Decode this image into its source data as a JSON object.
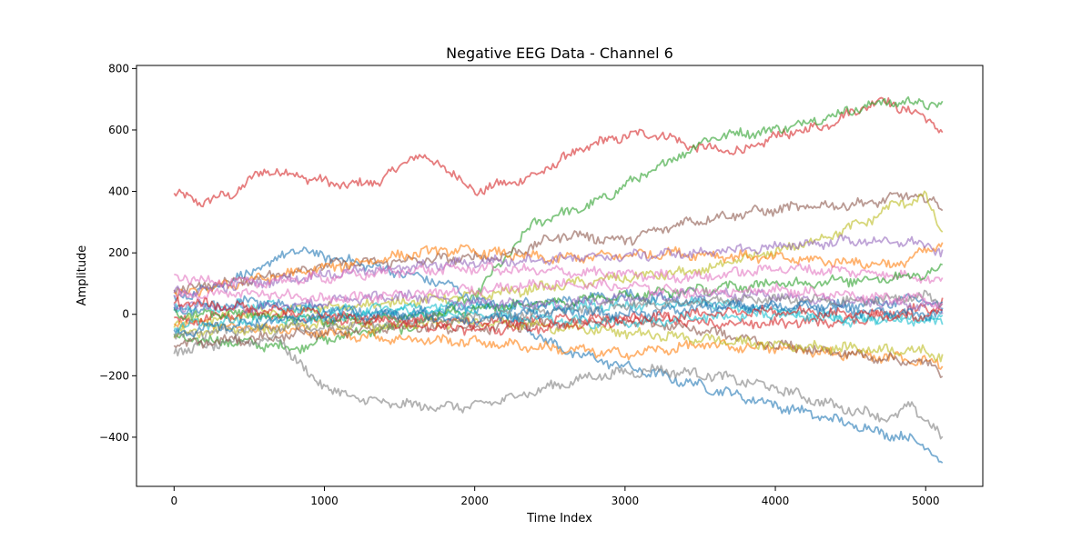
{
  "chart_data": {
    "type": "line",
    "title": "Negative EEG Data - Channel 6",
    "xlabel": "Time Index",
    "ylabel": "Amplitude",
    "xlim": [
      -250,
      5380
    ],
    "ylim": [
      -560,
      810
    ],
    "x_ticks": [
      0,
      1000,
      2000,
      3000,
      4000,
      5000
    ],
    "y_ticks": [
      -400,
      -200,
      0,
      200,
      400,
      600,
      800
    ],
    "x_tick_labels": [
      "0",
      "1000",
      "2000",
      "3000",
      "4000",
      "5000"
    ],
    "y_tick_labels": [
      "−400",
      "−200",
      "0",
      "200",
      "400",
      "600",
      "800"
    ],
    "grid": false,
    "line_opacity": 0.6,
    "n_points": 5120,
    "series": [
      {
        "color": "#d62728",
        "x": [
          0,
          200,
          400,
          600,
          800,
          1050,
          1200,
          1400,
          1600,
          1800,
          2000,
          2200,
          2400,
          2600,
          2800,
          3000,
          3200,
          3500,
          3800,
          4000,
          4300,
          4700,
          5000,
          5120
        ],
        "values": [
          390,
          365,
          395,
          470,
          455,
          425,
          420,
          440,
          520,
          480,
          400,
          425,
          450,
          510,
          555,
          580,
          590,
          540,
          530,
          580,
          610,
          700,
          640,
          595
        ]
      },
      {
        "color": "#2ca02c",
        "x": [
          0,
          400,
          800,
          1200,
          1600,
          2000,
          2400,
          2800,
          3000,
          3200,
          3400,
          3600,
          4000,
          4400,
          4700,
          4900,
          5120
        ],
        "values": [
          -80,
          -90,
          -110,
          -60,
          -40,
          60,
          300,
          360,
          420,
          470,
          530,
          580,
          600,
          650,
          690,
          690,
          680
        ]
      },
      {
        "color": "#1f77b4",
        "x": [
          0,
          500,
          800,
          1200,
          1800,
          2200,
          2600,
          3000,
          3400,
          3800,
          4200,
          4600,
          5000,
          5120
        ],
        "values": [
          50,
          130,
          210,
          170,
          100,
          0,
          -120,
          -170,
          -220,
          -270,
          -320,
          -370,
          -420,
          -500
        ]
      },
      {
        "color": "#7f7f7f",
        "x": [
          0,
          400,
          700,
          900,
          1100,
          1400,
          1700,
          2000,
          2400,
          2800,
          3200,
          3600,
          4000,
          4400,
          4800,
          4900,
          5120
        ],
        "values": [
          -120,
          -90,
          -80,
          -200,
          -260,
          -290,
          -300,
          -300,
          -250,
          -200,
          -180,
          -200,
          -240,
          -300,
          -340,
          -290,
          -410
        ]
      },
      {
        "color": "#8c564b",
        "x": [
          0,
          300,
          700,
          1000,
          1400,
          1800,
          2200,
          2600,
          3000,
          3400,
          3800,
          4200,
          4600,
          4900,
          5120
        ],
        "values": [
          80,
          100,
          130,
          160,
          170,
          180,
          190,
          260,
          240,
          300,
          330,
          350,
          360,
          390,
          350
        ]
      },
      {
        "color": "#bcbd22",
        "x": [
          0,
          500,
          1000,
          1500,
          2000,
          2500,
          3000,
          3500,
          3800,
          4200,
          4600,
          4800,
          5000,
          5120
        ],
        "values": [
          -30,
          0,
          20,
          40,
          60,
          90,
          120,
          140,
          180,
          230,
          300,
          360,
          380,
          260
        ]
      },
      {
        "color": "#ff7f0e",
        "x": [
          0,
          500,
          1000,
          1500,
          1800,
          2100,
          2500,
          2900,
          3300,
          3700,
          4100,
          4500,
          4800,
          5120
        ],
        "values": [
          60,
          110,
          150,
          190,
          210,
          200,
          180,
          190,
          200,
          190,
          180,
          170,
          160,
          230
        ]
      },
      {
        "color": "#9467bd",
        "x": [
          0,
          500,
          1000,
          1500,
          2000,
          2500,
          3000,
          3500,
          4000,
          4500,
          5000,
          5120
        ],
        "values": [
          70,
          100,
          130,
          150,
          170,
          180,
          190,
          200,
          220,
          240,
          230,
          190
        ]
      },
      {
        "color": "#e377c2",
        "x": [
          0,
          500,
          1000,
          1500,
          2000,
          2500,
          3000,
          3500,
          4000,
          4500,
          5000,
          5120
        ],
        "values": [
          120,
          100,
          120,
          140,
          150,
          140,
          130,
          120,
          150,
          140,
          120,
          110
        ]
      },
      {
        "color": "#17becf",
        "x": [
          0,
          500,
          1000,
          1500,
          2000,
          2500,
          3000,
          3500,
          4000,
          4500,
          5000,
          5120
        ],
        "values": [
          20,
          30,
          10,
          20,
          30,
          20,
          30,
          40,
          10,
          -20,
          -10,
          -40
        ]
      },
      {
        "color": "#ff7f0e",
        "x": [
          0,
          500,
          1000,
          1500,
          2000,
          2500,
          3000,
          3500,
          4000,
          4500,
          5000,
          5120
        ],
        "values": [
          -20,
          -40,
          -60,
          -80,
          -90,
          -110,
          -130,
          -100,
          -110,
          -130,
          -150,
          -170
        ]
      },
      {
        "color": "#8c564b",
        "x": [
          0,
          500,
          1000,
          1500,
          2000,
          2500,
          3000,
          3500,
          4000,
          4500,
          5000,
          5120
        ],
        "values": [
          -100,
          -80,
          -60,
          -40,
          -50,
          -30,
          -20,
          -50,
          -100,
          -130,
          -160,
          -190
        ]
      },
      {
        "color": "#bcbd22",
        "x": [
          0,
          500,
          1000,
          1500,
          2000,
          2500,
          3000,
          3500,
          4000,
          4500,
          5000,
          5120
        ],
        "values": [
          -60,
          -50,
          -30,
          -40,
          -20,
          -40,
          -60,
          -80,
          -100,
          -110,
          -120,
          -140
        ]
      },
      {
        "color": "#d62728",
        "x": [
          0,
          500,
          1000,
          1500,
          2000,
          2500,
          3000,
          3500,
          4000,
          4500,
          5000,
          5120
        ],
        "values": [
          -20,
          0,
          -20,
          -10,
          -30,
          -20,
          -10,
          -30,
          -30,
          -20,
          20,
          40
        ]
      },
      {
        "color": "#1f77b4",
        "x": [
          0,
          500,
          1000,
          1500,
          2000,
          2500,
          3000,
          3500,
          4000,
          4500,
          5000,
          5120
        ],
        "values": [
          10,
          40,
          20,
          0,
          20,
          40,
          60,
          40,
          20,
          30,
          50,
          20
        ]
      },
      {
        "color": "#2ca02c",
        "x": [
          0,
          500,
          1000,
          1500,
          2000,
          2500,
          3000,
          3500,
          4000,
          4500,
          5000,
          5120
        ],
        "values": [
          0,
          0,
          -20,
          -10,
          20,
          40,
          60,
          80,
          100,
          110,
          130,
          160
        ]
      },
      {
        "color": "#9467bd",
        "x": [
          0,
          500,
          1000,
          1500,
          2000,
          2500,
          3000,
          3500,
          4000,
          4500,
          5000,
          5120
        ],
        "values": [
          30,
          20,
          40,
          60,
          40,
          30,
          50,
          70,
          60,
          40,
          30,
          10
        ]
      },
      {
        "color": "#17becf",
        "x": [
          0,
          500,
          1000,
          1500,
          2000,
          2500,
          3000,
          3500,
          4000,
          4500,
          5000,
          5120
        ],
        "values": [
          -40,
          -20,
          -10,
          10,
          0,
          -20,
          -30,
          -10,
          0,
          -10,
          -20,
          0
        ]
      },
      {
        "color": "#7f7f7f",
        "x": [
          0,
          500,
          1000,
          1500,
          2000,
          2500,
          3000,
          3500,
          4000,
          4500,
          5000,
          5120
        ],
        "values": [
          -70,
          -50,
          -40,
          -20,
          -10,
          10,
          30,
          40,
          50,
          40,
          60,
          30
        ]
      },
      {
        "color": "#e377c2",
        "x": [
          0,
          500,
          1000,
          1500,
          2000,
          2500,
          3000,
          3500,
          4000,
          4500,
          5000,
          5120
        ],
        "values": [
          60,
          70,
          50,
          60,
          80,
          100,
          90,
          70,
          80,
          60,
          50,
          30
        ]
      },
      {
        "color": "#1f77b4",
        "x": [
          0,
          500,
          1000,
          1500,
          2000,
          2500,
          3000,
          3500,
          4000,
          4500,
          5000,
          5120
        ],
        "values": [
          -60,
          -30,
          -10,
          0,
          -20,
          10,
          0,
          20,
          30,
          10,
          0,
          10
        ]
      },
      {
        "color": "#d62728",
        "x": [
          0,
          500,
          1000,
          1500,
          2000,
          2500,
          3000,
          3500,
          4000,
          4500,
          5000,
          5120
        ],
        "values": [
          40,
          20,
          0,
          -30,
          -50,
          -40,
          -20,
          0,
          10,
          0,
          -10,
          20
        ]
      }
    ]
  }
}
